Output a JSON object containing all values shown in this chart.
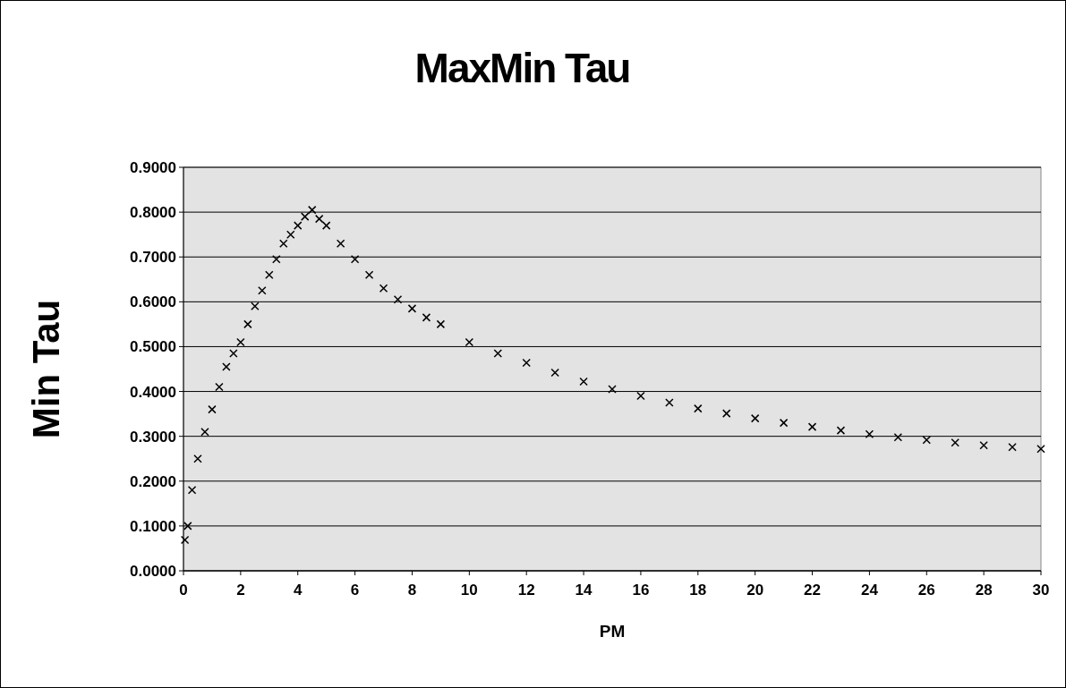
{
  "chart_data": {
    "type": "scatter",
    "title": "MaxMin Tau",
    "xlabel": "PM",
    "ylabel": "Min Tau",
    "marker": "cross",
    "grid": "y",
    "x": [
      0.05,
      0.15,
      0.3,
      0.5,
      0.75,
      1,
      1.25,
      1.5,
      1.75,
      2,
      2.25,
      2.5,
      2.75,
      3,
      3.25,
      3.5,
      3.75,
      4,
      4.25,
      4.5,
      4.75,
      5,
      5.5,
      6,
      6.5,
      7,
      7.5,
      8,
      8.5,
      9,
      10,
      11,
      12,
      13,
      14,
      15,
      16,
      17,
      18,
      19,
      20,
      21,
      22,
      23,
      24,
      25,
      26,
      27,
      28,
      29,
      30
    ],
    "series": [
      {
        "color": "#000000",
        "values": [
          0.069,
          0.1,
          0.18,
          0.25,
          0.31,
          0.36,
          0.41,
          0.455,
          0.485,
          0.51,
          0.55,
          0.59,
          0.625,
          0.66,
          0.695,
          0.73,
          0.75,
          0.77,
          0.79,
          0.805,
          0.785,
          0.77,
          0.73,
          0.695,
          0.66,
          0.63,
          0.605,
          0.585,
          0.565,
          0.55,
          0.51,
          0.485,
          0.464,
          0.442,
          0.422,
          0.405,
          0.39,
          0.375,
          0.362,
          0.351,
          0.34,
          0.33,
          0.321,
          0.313,
          0.305,
          0.298,
          0.292,
          0.286,
          0.28,
          0.276,
          0.272
        ]
      }
    ],
    "xlim": [
      0,
      30
    ],
    "xticks": [
      0,
      2,
      4,
      6,
      8,
      10,
      12,
      14,
      16,
      18,
      20,
      22,
      24,
      26,
      28,
      30
    ],
    "ylim": [
      0,
      0.9
    ],
    "yticks": [
      {
        "value": 0,
        "label": "0.0000"
      },
      {
        "value": 0.1,
        "label": "0.1000"
      },
      {
        "value": 0.2,
        "label": "0.2000"
      },
      {
        "value": 0.3,
        "label": "0.3000"
      },
      {
        "value": 0.4,
        "label": "0.4000"
      },
      {
        "value": 0.5,
        "label": "0.5000"
      },
      {
        "value": 0.6,
        "label": "0.6000"
      },
      {
        "value": 0.7,
        "label": "0.7000"
      },
      {
        "value": 0.8,
        "label": "0.8000"
      },
      {
        "value": 0.9,
        "label": "0.9000"
      }
    ]
  }
}
